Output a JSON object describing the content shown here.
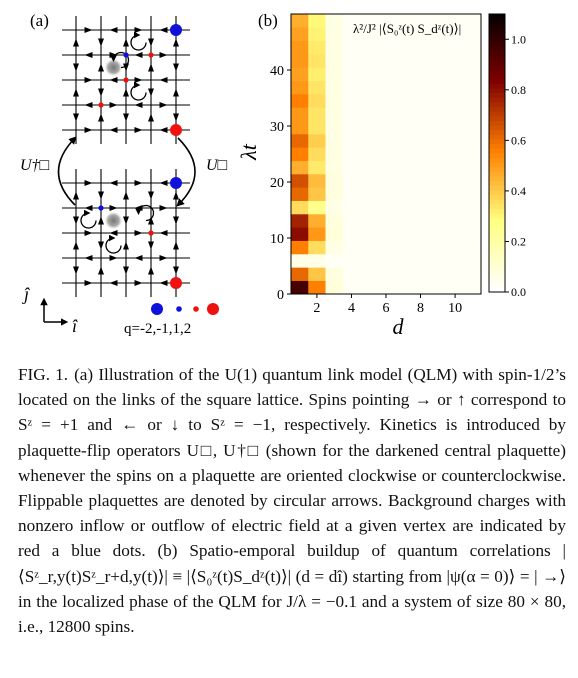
{
  "panel_a": {
    "label": "(a)",
    "op_left": "U†□",
    "op_right": "U□",
    "axis_j": "ĵ",
    "axis_i": "î",
    "charge_legend": "q=-2,-1,1,2",
    "colors": {
      "blue": "#1010dd",
      "red": "#ee1111",
      "lattice": "#000000"
    }
  },
  "panel_b": {
    "label": "(b)",
    "inset_label": "λ²/J² |⟨S₀ᶻ(t) S_dᶻ(t)⟩|",
    "colorbar_ticks": [
      "1.0",
      "0.8",
      "0.6",
      "0.4",
      "0.2",
      "0.0"
    ]
  },
  "chart_data": {
    "type": "heatmap",
    "xlabel": "d",
    "ylabel": "λt",
    "x_ticks": [
      2,
      4,
      6,
      8,
      10
    ],
    "y_ticks": [
      0,
      10,
      20,
      30,
      40
    ],
    "xlim": [
      0.5,
      11.5
    ],
    "ylim": [
      0,
      50
    ],
    "colorbar_range": [
      0,
      1.1
    ],
    "colormap": "afmhot_r",
    "columns": [
      {
        "d": 1,
        "profile": [
          0.95,
          0.6,
          0.05,
          0.55,
          0.8,
          0.75,
          0.35,
          0.6,
          0.65,
          0.45,
          0.55,
          0.6,
          0.5,
          0.5,
          0.55,
          0.5,
          0.48,
          0.5,
          0.5,
          0.48,
          0.45
        ]
      },
      {
        "d": 2,
        "profile": [
          0.55,
          0.4,
          0.05,
          0.35,
          0.5,
          0.45,
          0.25,
          0.4,
          0.42,
          0.32,
          0.35,
          0.38,
          0.33,
          0.33,
          0.35,
          0.33,
          0.31,
          0.33,
          0.32,
          0.3,
          0.29
        ]
      },
      {
        "d": 3,
        "profile": [
          0.08,
          0.07,
          0.02,
          0.06,
          0.08,
          0.07,
          0.05,
          0.07,
          0.07,
          0.06,
          0.06,
          0.06,
          0.06,
          0.06,
          0.06,
          0.06,
          0.06,
          0.06,
          0.06,
          0.06,
          0.06
        ]
      }
    ]
  },
  "caption": {
    "label": "FIG. 1.",
    "text": "(a) Illustration of the U(1) quantum link model (QLM) with spin-1/2’s located on the links of the square lattice. Spins pointing → or ↑ correspond to Sᶻ = +1 and ← or ↓ to Sᶻ = −1, respectively. Kinetics is introduced by plaquette-flip operators U□, U†□ (shown for the darkened central plaquette) whenever the spins on a plaquette are oriented clockwise or counterclockwise. Flippable plaquettes are denoted by circular arrows. Background charges with nonzero inflow or outflow of electric field at a given vertex are indicated by red a blue dots. (b) Spatio-emporal buildup of quantum correlations |⟨Sᶻ_r,y(t)Sᶻ_r+d,y(t)⟩| ≡ |⟨S₀ᶻ(t)S_dᶻ(t)⟩| (d = dî) starting from |ψ(α = 0)⟩ = | →⟩ in the localized phase of the QLM for J/λ = −0.1 and a system of size 80 × 80, i.e., 12800 spins."
  }
}
